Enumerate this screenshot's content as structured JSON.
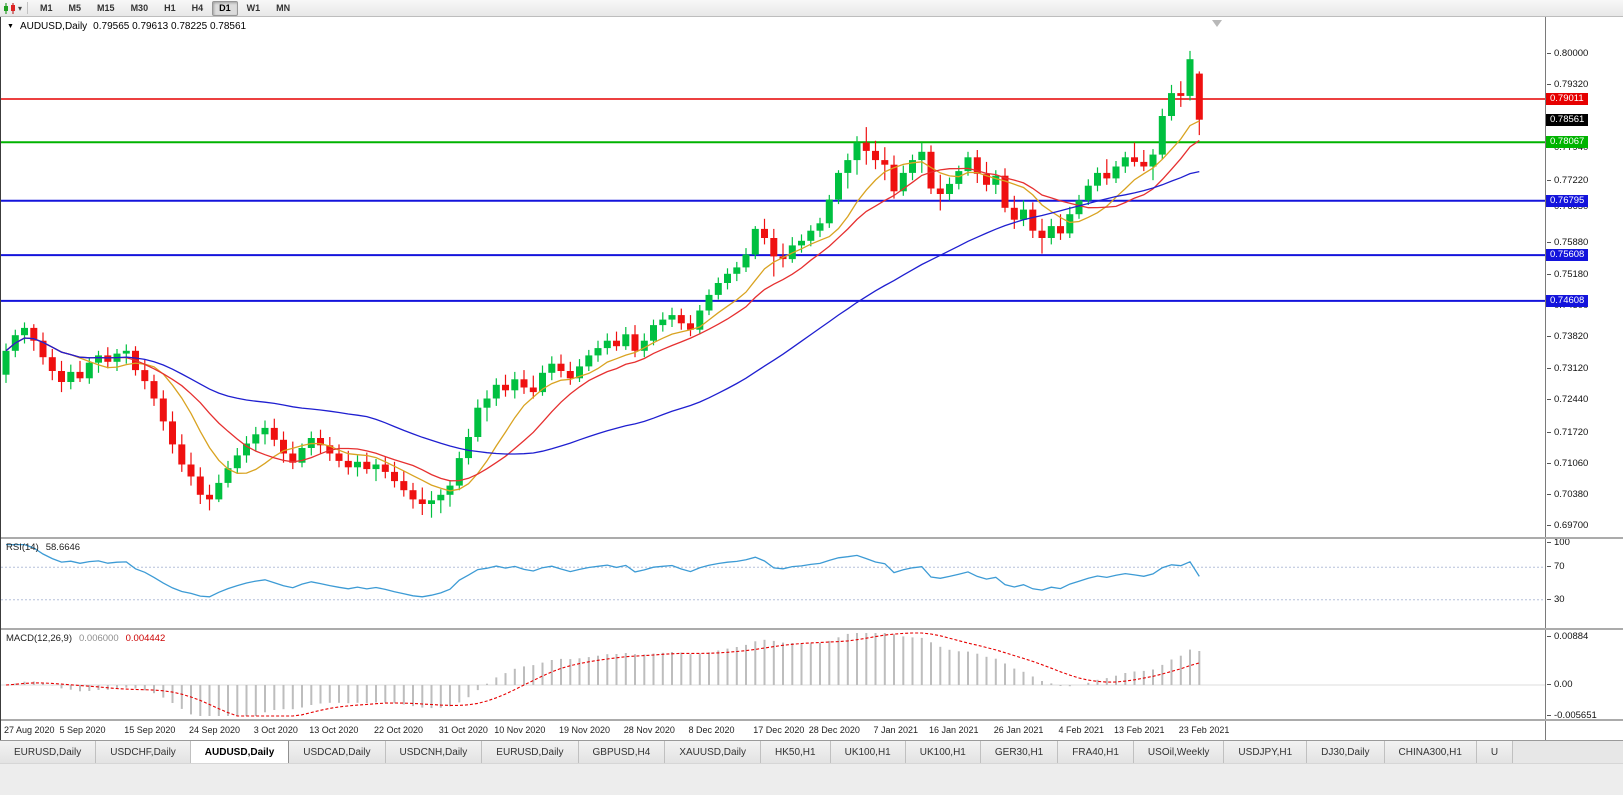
{
  "icons": {
    "symbol_marker": "▼",
    "caret": "▾"
  },
  "toolbar": {
    "timeframes": [
      "M1",
      "M5",
      "M15",
      "M30",
      "H1",
      "H4",
      "D1",
      "W1",
      "MN"
    ],
    "active": "D1"
  },
  "header": {
    "symbol_text": "AUDUSD,Daily",
    "ohlc_text": "0.79565 0.79613 0.78225 0.78561"
  },
  "tabs": {
    "active_index": 2,
    "items": [
      "EURUSD,Daily",
      "USDCHF,Daily",
      "AUDUSD,Daily",
      "USDCAD,Daily",
      "USDCNH,Daily",
      "EURUSD,Daily",
      "GBPUSD,H4",
      "XAUUSD,Daily",
      "HK50,H1",
      "UK100,H1",
      "UK100,H1",
      "GER30,H1",
      "FRA40,H1",
      "USOil,Weekly",
      "USDJPY,H1",
      "DJ30,Daily",
      "CHINA300,H1",
      "U"
    ]
  },
  "chart_data": {
    "type": "candlestick",
    "symbol": "AUDUSD",
    "timeframe": "Daily",
    "ohlc_current": {
      "open": 0.79565,
      "high": 0.79613,
      "low": 0.78225,
      "close": 0.78561
    },
    "ylim": [
      0.6946,
      0.808
    ],
    "current_price": 0.78561,
    "colors": {
      "bull": "#00c040",
      "bear": "#ef1010",
      "ma_fast": "#d9a321",
      "ma_mid": "#e63030",
      "ma_slow": "#1f1fd0",
      "rsi_line": "#3d9bd5",
      "rsi_level": "#b6c0da",
      "macd_bar": "#bdbdbd",
      "macd_signal": "#e60000"
    },
    "price_ticks": [
      0.8,
      0.7932,
      0.7794,
      0.7722,
      0.7665,
      0.7588,
      0.7518,
      0.745,
      0.7382,
      0.7312,
      0.7244,
      0.7172,
      0.7106,
      0.7038,
      0.697
    ],
    "hlines": [
      {
        "value": 0.79011,
        "label": "0.79011",
        "color": "#e60000",
        "width": 1.5
      },
      {
        "value": 0.78067,
        "label": "0.78067",
        "color": "#00b300",
        "width": 2
      },
      {
        "value": 0.76795,
        "label": "0.76795",
        "color": "#1414dc",
        "width": 2
      },
      {
        "value": 0.75608,
        "label": "0.75608",
        "color": "#1414dc",
        "width": 2
      },
      {
        "value": 0.74608,
        "label": "0.74608",
        "color": "#1414dc",
        "width": 2
      }
    ],
    "moving_averages": [
      {
        "name": "ma-fast",
        "period": 8,
        "color": "#d9a321"
      },
      {
        "name": "ma-mid",
        "period": 13,
        "color": "#e63030"
      },
      {
        "name": "ma-slow",
        "period": 40,
        "color": "#1f1fd0"
      }
    ],
    "date_labels": [
      {
        "i": 0,
        "label": "27 Aug 2020"
      },
      {
        "i": 6,
        "label": "5 Sep 2020"
      },
      {
        "i": 13,
        "label": "15 Sep 2020"
      },
      {
        "i": 20,
        "label": "24 Sep 2020"
      },
      {
        "i": 27,
        "label": "3 Oct 2020"
      },
      {
        "i": 33,
        "label": "13 Oct 2020"
      },
      {
        "i": 40,
        "label": "22 Oct 2020"
      },
      {
        "i": 47,
        "label": "31 Oct 2020"
      },
      {
        "i": 53,
        "label": "10 Nov 2020"
      },
      {
        "i": 60,
        "label": "19 Nov 2020"
      },
      {
        "i": 67,
        "label": "28 Nov 2020"
      },
      {
        "i": 74,
        "label": "8 Dec 2020"
      },
      {
        "i": 81,
        "label": "17 Dec 2020"
      },
      {
        "i": 87,
        "label": "28 Dec 2020"
      },
      {
        "i": 94,
        "label": "7 Jan 2021"
      },
      {
        "i": 100,
        "label": "16 Jan 2021"
      },
      {
        "i": 107,
        "label": "26 Jan 2021"
      },
      {
        "i": 114,
        "label": "4 Feb 2021"
      },
      {
        "i": 120,
        "label": "13 Feb 2021"
      },
      {
        "i": 127,
        "label": "23 Feb 2021"
      }
    ],
    "rsi": {
      "label": "RSI(14)",
      "value_text": "58.6646",
      "period": 14,
      "levels": [
        {
          "v": 100,
          "t": "100"
        },
        {
          "v": 70,
          "t": "70"
        },
        {
          "v": 30,
          "t": "30"
        }
      ]
    },
    "macd": {
      "label": "MACD(12,26,9)",
      "macd_text": "0.006000",
      "signal_text": "0.004442",
      "scale": [
        {
          "v": 0.00884,
          "t": "0.00884"
        },
        {
          "v": 0,
          "t": "0.00"
        },
        {
          "v": -0.005651,
          "t": "-0.005651"
        }
      ]
    },
    "candles": [
      [
        0.73,
        0.7368,
        0.7282,
        0.7352
      ],
      [
        0.7352,
        0.7398,
        0.7338,
        0.7386
      ],
      [
        0.7386,
        0.7414,
        0.7368,
        0.7402
      ],
      [
        0.7402,
        0.741,
        0.7352,
        0.7374
      ],
      [
        0.7374,
        0.7392,
        0.7322,
        0.7338
      ],
      [
        0.7338,
        0.7356,
        0.7288,
        0.7308
      ],
      [
        0.7308,
        0.733,
        0.7262,
        0.7284
      ],
      [
        0.7284,
        0.7322,
        0.7268,
        0.7306
      ],
      [
        0.7306,
        0.733,
        0.7284,
        0.7292
      ],
      [
        0.7292,
        0.7336,
        0.728,
        0.7326
      ],
      [
        0.7326,
        0.7352,
        0.7304,
        0.7342
      ],
      [
        0.7342,
        0.736,
        0.7314,
        0.7328
      ],
      [
        0.7328,
        0.7356,
        0.7308,
        0.7346
      ],
      [
        0.7346,
        0.7366,
        0.7324,
        0.7352
      ],
      [
        0.7352,
        0.7362,
        0.7298,
        0.731
      ],
      [
        0.731,
        0.7332,
        0.7268,
        0.7286
      ],
      [
        0.7286,
        0.73,
        0.7232,
        0.7248
      ],
      [
        0.7248,
        0.7266,
        0.7178,
        0.7198
      ],
      [
        0.7198,
        0.722,
        0.7128,
        0.7148
      ],
      [
        0.7148,
        0.717,
        0.7088,
        0.7104
      ],
      [
        0.7104,
        0.713,
        0.7058,
        0.7078
      ],
      [
        0.7078,
        0.7098,
        0.7018,
        0.7038
      ],
      [
        0.7038,
        0.706,
        0.7004,
        0.7028
      ],
      [
        0.7028,
        0.7082,
        0.7022,
        0.7064
      ],
      [
        0.7064,
        0.7112,
        0.7054,
        0.7096
      ],
      [
        0.7096,
        0.714,
        0.7084,
        0.7124
      ],
      [
        0.7124,
        0.7166,
        0.7108,
        0.715
      ],
      [
        0.715,
        0.7186,
        0.7134,
        0.717
      ],
      [
        0.717,
        0.72,
        0.7148,
        0.7184
      ],
      [
        0.7184,
        0.7204,
        0.7144,
        0.7158
      ],
      [
        0.7158,
        0.7176,
        0.7108,
        0.7128
      ],
      [
        0.7128,
        0.7154,
        0.7094,
        0.7108
      ],
      [
        0.7108,
        0.715,
        0.7098,
        0.714
      ],
      [
        0.714,
        0.7176,
        0.7124,
        0.7162
      ],
      [
        0.7162,
        0.718,
        0.7128,
        0.7146
      ],
      [
        0.7146,
        0.7164,
        0.7112,
        0.7128
      ],
      [
        0.7128,
        0.7148,
        0.7098,
        0.7112
      ],
      [
        0.7112,
        0.7134,
        0.7082,
        0.7098
      ],
      [
        0.7098,
        0.7124,
        0.7078,
        0.711
      ],
      [
        0.711,
        0.713,
        0.7084,
        0.7094
      ],
      [
        0.7094,
        0.7116,
        0.7068,
        0.7104
      ],
      [
        0.7104,
        0.712,
        0.7074,
        0.7088
      ],
      [
        0.7088,
        0.711,
        0.7054,
        0.7068
      ],
      [
        0.7068,
        0.709,
        0.7034,
        0.7048
      ],
      [
        0.7048,
        0.7064,
        0.7008,
        0.7028
      ],
      [
        0.7028,
        0.7054,
        0.6994,
        0.7018
      ],
      [
        0.7018,
        0.7046,
        0.6988,
        0.7026
      ],
      [
        0.7026,
        0.705,
        0.6998,
        0.7038
      ],
      [
        0.7038,
        0.707,
        0.7012,
        0.7058
      ],
      [
        0.7058,
        0.7132,
        0.7048,
        0.7118
      ],
      [
        0.7118,
        0.7182,
        0.7104,
        0.7164
      ],
      [
        0.7164,
        0.7246,
        0.7154,
        0.7228
      ],
      [
        0.7228,
        0.7266,
        0.7198,
        0.7248
      ],
      [
        0.7248,
        0.7292,
        0.7232,
        0.7278
      ],
      [
        0.7278,
        0.73,
        0.7252,
        0.7266
      ],
      [
        0.7266,
        0.7306,
        0.7248,
        0.729
      ],
      [
        0.729,
        0.731,
        0.7258,
        0.7272
      ],
      [
        0.7272,
        0.7298,
        0.7248,
        0.7262
      ],
      [
        0.7262,
        0.732,
        0.7254,
        0.7304
      ],
      [
        0.7304,
        0.734,
        0.7288,
        0.7324
      ],
      [
        0.7324,
        0.7344,
        0.7294,
        0.7308
      ],
      [
        0.7308,
        0.7328,
        0.7278,
        0.7292
      ],
      [
        0.7292,
        0.7334,
        0.7284,
        0.7318
      ],
      [
        0.7318,
        0.7354,
        0.7308,
        0.7342
      ],
      [
        0.7342,
        0.7374,
        0.7328,
        0.7358
      ],
      [
        0.7358,
        0.739,
        0.7344,
        0.7374
      ],
      [
        0.7374,
        0.7394,
        0.7352,
        0.7362
      ],
      [
        0.7362,
        0.7404,
        0.7354,
        0.7388
      ],
      [
        0.7388,
        0.7408,
        0.7338,
        0.7352
      ],
      [
        0.7352,
        0.739,
        0.7338,
        0.7374
      ],
      [
        0.7374,
        0.742,
        0.7364,
        0.7408
      ],
      [
        0.7408,
        0.7436,
        0.7394,
        0.742
      ],
      [
        0.742,
        0.7446,
        0.7404,
        0.743
      ],
      [
        0.743,
        0.7444,
        0.7398,
        0.7412
      ],
      [
        0.7412,
        0.743,
        0.7384,
        0.7398
      ],
      [
        0.7398,
        0.7452,
        0.7388,
        0.744
      ],
      [
        0.744,
        0.7486,
        0.743,
        0.7474
      ],
      [
        0.7474,
        0.7512,
        0.7464,
        0.75
      ],
      [
        0.75,
        0.7532,
        0.7486,
        0.752
      ],
      [
        0.752,
        0.7546,
        0.7504,
        0.7534
      ],
      [
        0.7534,
        0.7576,
        0.7524,
        0.7562
      ],
      [
        0.7562,
        0.7624,
        0.7552,
        0.7618
      ],
      [
        0.7618,
        0.764,
        0.7584,
        0.7598
      ],
      [
        0.7598,
        0.7618,
        0.7514,
        0.7558
      ],
      [
        0.7558,
        0.7586,
        0.7534,
        0.7552
      ],
      [
        0.7552,
        0.76,
        0.7544,
        0.7582
      ],
      [
        0.7582,
        0.7606,
        0.7566,
        0.7592
      ],
      [
        0.7592,
        0.7626,
        0.758,
        0.7614
      ],
      [
        0.7614,
        0.7642,
        0.76,
        0.763
      ],
      [
        0.763,
        0.7692,
        0.762,
        0.7682
      ],
      [
        0.7682,
        0.7746,
        0.7672,
        0.774
      ],
      [
        0.774,
        0.7782,
        0.7706,
        0.7768
      ],
      [
        0.7768,
        0.782,
        0.7736,
        0.7806
      ],
      [
        0.7806,
        0.784,
        0.7758,
        0.7788
      ],
      [
        0.7788,
        0.781,
        0.7748,
        0.7768
      ],
      [
        0.7768,
        0.7796,
        0.7724,
        0.7758
      ],
      [
        0.7758,
        0.7778,
        0.7684,
        0.77
      ],
      [
        0.77,
        0.7756,
        0.769,
        0.774
      ],
      [
        0.774,
        0.778,
        0.7724,
        0.7768
      ],
      [
        0.7768,
        0.7806,
        0.774,
        0.7786
      ],
      [
        0.7786,
        0.78,
        0.7694,
        0.7706
      ],
      [
        0.7706,
        0.7736,
        0.7658,
        0.7694
      ],
      [
        0.7694,
        0.773,
        0.768,
        0.7716
      ],
      [
        0.7716,
        0.7756,
        0.7704,
        0.7744
      ],
      [
        0.7744,
        0.7786,
        0.7734,
        0.7774
      ],
      [
        0.7774,
        0.779,
        0.7718,
        0.7738
      ],
      [
        0.7738,
        0.7764,
        0.77,
        0.7714
      ],
      [
        0.7714,
        0.7746,
        0.7694,
        0.7734
      ],
      [
        0.7734,
        0.775,
        0.7654,
        0.7664
      ],
      [
        0.7664,
        0.769,
        0.7618,
        0.7638
      ],
      [
        0.7638,
        0.768,
        0.7624,
        0.766
      ],
      [
        0.766,
        0.7676,
        0.7598,
        0.7614
      ],
      [
        0.7614,
        0.764,
        0.7564,
        0.7598
      ],
      [
        0.7598,
        0.764,
        0.7584,
        0.7624
      ],
      [
        0.7624,
        0.765,
        0.7594,
        0.7608
      ],
      [
        0.7608,
        0.7666,
        0.7598,
        0.765
      ],
      [
        0.765,
        0.7692,
        0.764,
        0.768
      ],
      [
        0.768,
        0.7726,
        0.767,
        0.7712
      ],
      [
        0.7712,
        0.7752,
        0.77,
        0.774
      ],
      [
        0.774,
        0.777,
        0.7714,
        0.7728
      ],
      [
        0.7728,
        0.7766,
        0.7718,
        0.7754
      ],
      [
        0.7754,
        0.7786,
        0.774,
        0.7774
      ],
      [
        0.7774,
        0.7806,
        0.7754,
        0.7764
      ],
      [
        0.7764,
        0.779,
        0.7744,
        0.7754
      ],
      [
        0.7754,
        0.7792,
        0.7724,
        0.778
      ],
      [
        0.778,
        0.788,
        0.777,
        0.7864
      ],
      [
        0.7864,
        0.7932,
        0.7854,
        0.7914
      ],
      [
        0.7914,
        0.794,
        0.7884,
        0.7908
      ],
      [
        0.7908,
        0.8006,
        0.7898,
        0.7988
      ],
      [
        0.79565,
        0.79613,
        0.78225,
        0.78561
      ]
    ]
  }
}
